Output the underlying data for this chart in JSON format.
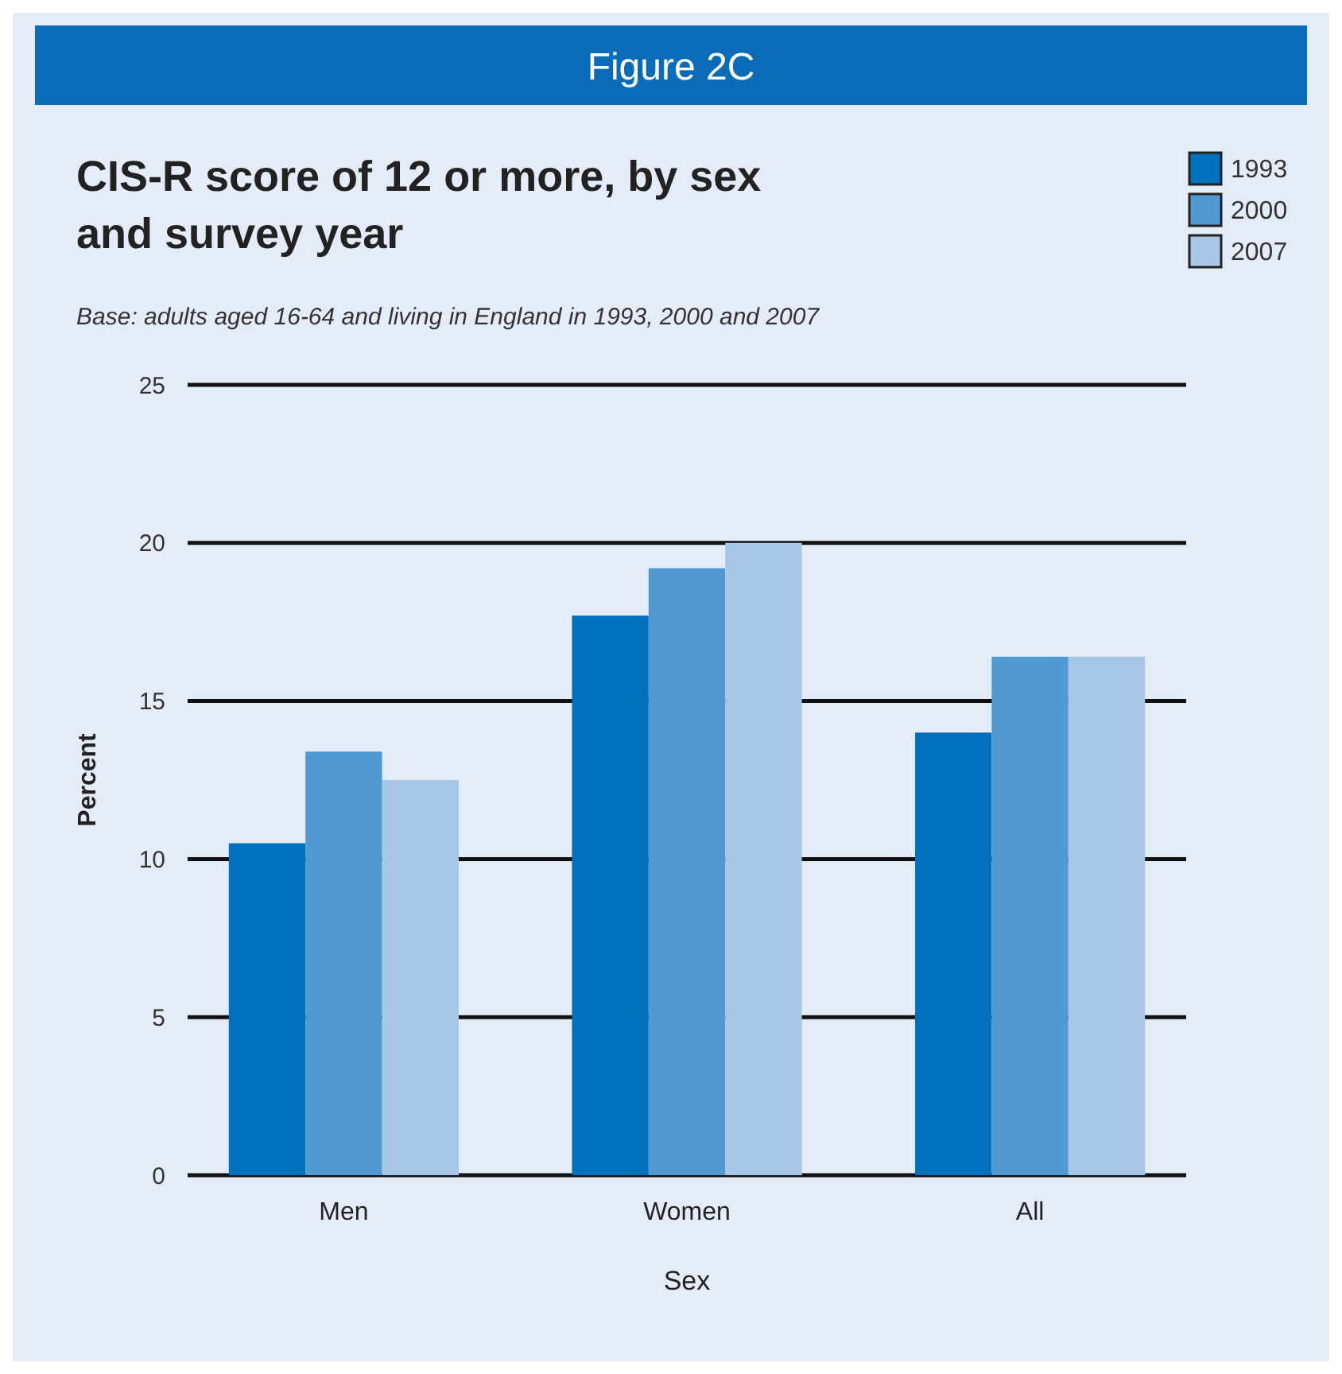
{
  "chart_data": {
    "type": "bar",
    "title": "Figure 2C",
    "subtitle": "CIS-R score of 12 or more, by sex and survey year",
    "annotations": [
      "Base: adults aged 16-64 and living in England in 1993, 2000 and 2007"
    ],
    "xlabel": "Sex",
    "ylabel": "Percent",
    "categories": [
      "Men",
      "Women",
      "All"
    ],
    "series": [
      {
        "name": "1993",
        "color": "#0071bc",
        "values": [
          10.5,
          17.7,
          14.0
        ]
      },
      {
        "name": "2000",
        "color": "#5199d3",
        "values": [
          13.4,
          19.2,
          16.4
        ]
      },
      {
        "name": "2007",
        "color": "#a8c6e6",
        "values": [
          12.5,
          20.0,
          16.4
        ]
      }
    ],
    "ylim": [
      0,
      25
    ],
    "yticks": [
      0,
      5,
      10,
      15,
      20,
      25
    ],
    "grid": "y",
    "legend": "top right"
  }
}
